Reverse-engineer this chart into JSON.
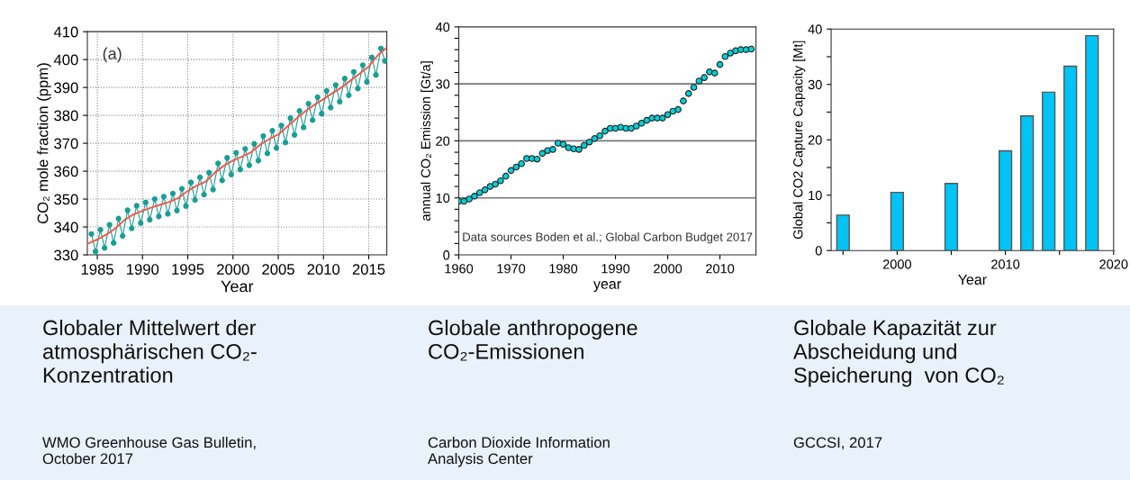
{
  "chart_data": [
    {
      "type": "line",
      "title": "Globaler Mittelwert der\natmosphärischen CO₂-\nKonzentration",
      "xlabel": "Year",
      "ylabel": "CO₂ mole fraction (ppm)",
      "annotations": [
        "(a)",
        "WMO Greenhouse Gas Bulletin,\nOctober 2017"
      ],
      "xlim": [
        1983.9,
        2017.0
      ],
      "ylim": [
        330,
        410
      ],
      "xticks": [
        1985,
        1990,
        1995,
        2000,
        2005,
        2010,
        2015
      ],
      "yticks": [
        330,
        340,
        350,
        360,
        370,
        380,
        390,
        400,
        410
      ],
      "grid": true,
      "series": [
        {
          "type": "line",
          "marker": "circle",
          "color": "#1a9e96",
          "x": [
            1984.35,
            1984.8,
            1985.35,
            1985.8,
            1986.35,
            1986.8,
            1987.35,
            1987.8,
            1988.35,
            1988.8,
            1989.35,
            1989.8,
            1990.35,
            1990.8,
            1991.35,
            1991.8,
            1992.35,
            1992.8,
            1993.35,
            1993.8,
            1994.35,
            1994.8,
            1995.35,
            1995.8,
            1996.35,
            1996.8,
            1997.35,
            1997.8,
            1998.35,
            1998.8,
            1999.35,
            1999.8,
            2000.35,
            2000.8,
            2001.35,
            2001.8,
            2002.35,
            2002.8,
            2003.35,
            2003.8,
            2004.35,
            2004.8,
            2005.35,
            2005.8,
            2006.35,
            2006.8,
            2007.35,
            2007.8,
            2008.35,
            2008.8,
            2009.35,
            2009.8,
            2010.35,
            2010.8,
            2011.35,
            2011.8,
            2012.35,
            2012.8,
            2013.35,
            2013.8,
            2014.35,
            2014.8,
            2015.35,
            2015.8,
            2016.35,
            2016.8
          ],
          "values": [
            337.5,
            331.2,
            339,
            332.5,
            340.8,
            334.3,
            343,
            336.8,
            346,
            339.5,
            347.6,
            341.4,
            348.8,
            342.6,
            350,
            343.8,
            350.9,
            344.7,
            352,
            345.9,
            353.7,
            347.5,
            356,
            349.7,
            357.8,
            351.6,
            359.5,
            353.4,
            362.8,
            356.7,
            364.8,
            358.8,
            366.6,
            360.6,
            368,
            362.1,
            369.8,
            363.8,
            372.6,
            366.4,
            374.5,
            368.3,
            376.4,
            370.3,
            379,
            373,
            381.6,
            375.7,
            384.2,
            378.3,
            386.5,
            380.6,
            388.8,
            382.8,
            390.9,
            384.9,
            393.2,
            387.2,
            395.6,
            389.6,
            398,
            392,
            400.8,
            394.5,
            404,
            399.5
          ]
        },
        {
          "type": "line",
          "marker": "none",
          "color": "#f05a4a",
          "x": [
            1984,
            1985,
            1986,
            1987,
            1988,
            1989,
            1990,
            1991,
            1992,
            1993,
            1994,
            1995,
            1996,
            1997,
            1998,
            1999,
            2000,
            2001,
            2002,
            2003,
            2004,
            2005,
            2006,
            2007,
            2008,
            2009,
            2010,
            2011,
            2012,
            2013,
            2014,
            2015,
            2016,
            2016.95
          ],
          "values": [
            334.1,
            335.5,
            337.3,
            339.5,
            342.5,
            344.5,
            345.8,
            347,
            348,
            349,
            350.5,
            352.9,
            354.8,
            356.3,
            359.5,
            362,
            363.8,
            365.2,
            366.8,
            369.5,
            371.5,
            373.1,
            376,
            378.8,
            381.5,
            383.8,
            385.8,
            388,
            390,
            392.5,
            395,
            397.5,
            401.5,
            404.2
          ]
        }
      ]
    },
    {
      "type": "scatter",
      "title": "Globale anthropogene\nCO₂-Emissionen",
      "xlabel": "year",
      "ylabel": "annual CO₂ Emission [Gt/a]",
      "annotations": [
        "Data sources Boden et al.; Global Carbon Budget 2017",
        "Carbon Dioxide Information\nAnalysis Center"
      ],
      "xlim": [
        1960,
        2016.9
      ],
      "ylim": [
        0,
        40
      ],
      "xticks": [
        1960,
        1970,
        1980,
        1990,
        2000,
        2010
      ],
      "yticks": [
        0,
        {
          "value": 2,
          "label": null
        },
        {
          "value": 4,
          "label": null
        },
        {
          "value": 6,
          "label": null
        },
        {
          "value": 8,
          "label": null
        },
        10,
        {
          "value": 12,
          "label": null
        },
        {
          "value": 14,
          "label": null
        },
        {
          "value": 16,
          "label": null
        },
        {
          "value": 18,
          "label": null
        },
        20,
        {
          "value": 22,
          "label": null
        },
        {
          "value": 24,
          "label": null
        },
        {
          "value": 26,
          "label": null
        },
        {
          "value": 28,
          "label": null
        },
        30,
        {
          "value": 32,
          "label": null
        },
        {
          "value": 34,
          "label": null
        },
        {
          "value": 36,
          "label": null
        },
        {
          "value": 38,
          "label": null
        },
        40
      ],
      "grid": "y",
      "marker": "circle",
      "series": [
        {
          "type": "scatter",
          "color": "#00d0d8",
          "x": [
            1960,
            1961,
            1962,
            1963,
            1964,
            1965,
            1966,
            1967,
            1968,
            1969,
            1970,
            1971,
            1972,
            1973,
            1974,
            1975,
            1976,
            1977,
            1978,
            1979,
            1980,
            1981,
            1982,
            1983,
            1984,
            1985,
            1986,
            1987,
            1988,
            1989,
            1990,
            1991,
            1992,
            1993,
            1994,
            1995,
            1996,
            1997,
            1998,
            1999,
            2000,
            2001,
            2002,
            2003,
            2004,
            2005,
            2006,
            2007,
            2008,
            2009,
            2010,
            2011,
            2012,
            2013,
            2014,
            2015,
            2016
          ],
          "values": [
            9.4,
            9.4,
            9.8,
            10.3,
            10.9,
            11.4,
            12.0,
            12.4,
            13.0,
            13.8,
            14.8,
            15.4,
            16.0,
            16.9,
            16.9,
            16.8,
            17.8,
            18.3,
            18.5,
            19.6,
            19.4,
            18.8,
            18.6,
            18.5,
            19.2,
            19.8,
            20.4,
            20.9,
            21.7,
            22.2,
            22.2,
            22.4,
            22.2,
            22.2,
            22.6,
            23.1,
            23.6,
            24.0,
            24.0,
            24.0,
            24.6,
            25.2,
            25.5,
            27.0,
            28.3,
            29.4,
            30.5,
            31.1,
            32.1,
            31.9,
            33.4,
            34.8,
            35.4,
            35.8,
            36.0,
            36.0,
            36.1
          ]
        }
      ]
    },
    {
      "type": "bar",
      "title": "Globale Kapazität zur\nAbscheidung und\nSpeicherung  von CO₂",
      "xlabel": "Year",
      "ylabel": "Global CO2 Capture Capacity [Mt]",
      "annotations": [
        "GCCSI, 2017"
      ],
      "x": [
        1995,
        2000,
        2005,
        2010,
        2012,
        2014,
        2016,
        2018
      ],
      "values": [
        6.4,
        10.5,
        12.1,
        18.0,
        24.3,
        28.6,
        33.3,
        38.8
      ],
      "color": "#00c4f5",
      "xlim": [
        1993.9,
        2020
      ],
      "ylim": [
        0,
        40
      ],
      "xticks": [
        {
          "value": 1995,
          "label": null
        },
        2000,
        {
          "value": 2005,
          "label": null
        },
        2010,
        {
          "value": 2015,
          "label": null
        },
        2020
      ],
      "yticks": [
        0,
        {
          "value": 5,
          "label": null
        },
        10,
        {
          "value": 15,
          "label": null
        },
        20,
        {
          "value": 25,
          "label": null
        },
        30,
        {
          "value": 35,
          "label": null
        },
        40
      ]
    }
  ]
}
